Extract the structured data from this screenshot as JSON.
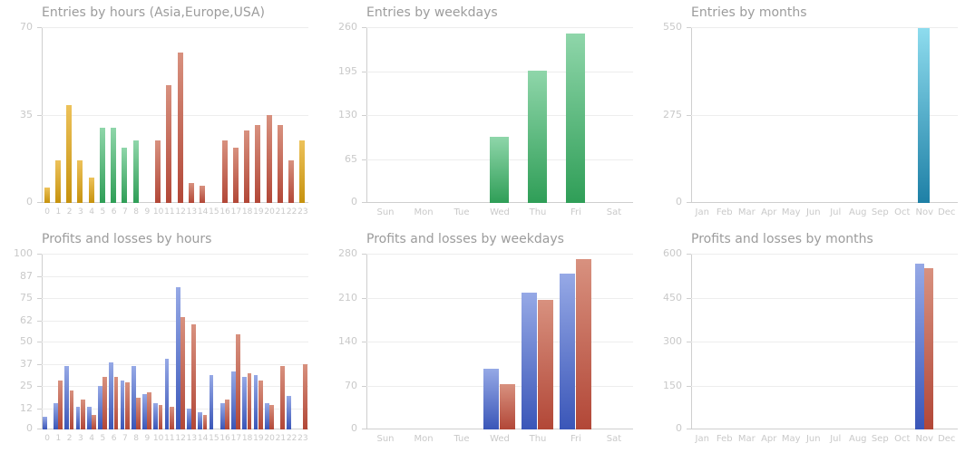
{
  "page": {
    "background": "#ffffff"
  },
  "axis_style": {
    "title_color": "#9c9c9c",
    "tick_label_color": "#c9c9c9",
    "axis_line_color": "#cfcfcf",
    "grid_color": "#ededed"
  },
  "palette": {
    "orange": {
      "top": "#edc25a",
      "bottom": "#c6920e"
    },
    "green": {
      "top": "#8fd6aa",
      "bottom": "#2f9e57"
    },
    "red": {
      "top": "#d8917f",
      "bottom": "#b24737"
    },
    "blue": {
      "top": "#96a9e6",
      "bottom": "#3a56b8"
    },
    "teal": {
      "top": "#8edcee",
      "bottom": "#1e80a6"
    }
  },
  "chart_data": [
    {
      "type": "bar",
      "title": "Entries by hours (Asia,Europe,USA)",
      "categories": [
        "0",
        "1",
        "2",
        "3",
        "4",
        "5",
        "6",
        "7",
        "8",
        "9",
        "10",
        "11",
        "12",
        "13",
        "14",
        "15",
        "16",
        "17",
        "18",
        "19",
        "20",
        "21",
        "22",
        "23"
      ],
      "values": [
        6,
        17,
        39,
        17,
        10,
        30,
        30,
        22,
        25,
        0,
        25,
        47,
        60,
        8,
        7,
        0,
        25,
        22,
        29,
        31,
        35,
        31,
        17,
        25
      ],
      "bar_colors": [
        "orange",
        "orange",
        "orange",
        "orange",
        "orange",
        "green",
        "green",
        "green",
        "green",
        "green",
        "red",
        "red",
        "red",
        "red",
        "red",
        "red",
        "red",
        "red",
        "red",
        "red",
        "red",
        "red",
        "red",
        "orange"
      ],
      "ylim": [
        0,
        70
      ],
      "yticks": [
        0,
        35,
        70
      ],
      "grid": true,
      "legend": "none"
    },
    {
      "type": "bar",
      "title": "Entries by weekdays",
      "categories": [
        "Sun",
        "Mon",
        "Tue",
        "Wed",
        "Thu",
        "Fri",
        "Sat"
      ],
      "values": [
        0,
        0,
        0,
        98,
        196,
        250,
        0
      ],
      "color": "green",
      "ylim": [
        0,
        260
      ],
      "yticks": [
        0,
        65,
        130,
        195,
        260
      ],
      "grid": true,
      "legend": "none"
    },
    {
      "type": "bar",
      "title": "Entries by months",
      "categories": [
        "Jan",
        "Feb",
        "Mar",
        "Apr",
        "May",
        "Jun",
        "Jul",
        "Aug",
        "Sep",
        "Oct",
        "Nov",
        "Dec"
      ],
      "values": [
        0,
        0,
        0,
        0,
        0,
        0,
        0,
        0,
        0,
        0,
        548,
        0
      ],
      "color": "teal",
      "ylim": [
        0,
        550
      ],
      "yticks": [
        0,
        275,
        550
      ],
      "grid": true,
      "legend": "none"
    },
    {
      "type": "bar",
      "title": "Profits and losses by hours",
      "categories": [
        "0",
        "1",
        "2",
        "3",
        "4",
        "5",
        "6",
        "7",
        "8",
        "9",
        "10",
        "11",
        "12",
        "13",
        "14",
        "15",
        "16",
        "17",
        "18",
        "19",
        "20",
        "21",
        "22",
        "23"
      ],
      "series": [
        {
          "color": "blue",
          "values": [
            7,
            15,
            36,
            13,
            13,
            25,
            38,
            28,
            36,
            20,
            15,
            40,
            81,
            12,
            10,
            31,
            15,
            33,
            30,
            31,
            15,
            0,
            19,
            0
          ]
        },
        {
          "color": "red",
          "values": [
            0,
            28,
            22,
            17,
            8,
            30,
            30,
            27,
            18,
            21,
            14,
            13,
            64,
            60,
            8,
            0,
            17,
            54,
            32,
            28,
            14,
            36,
            0,
            37
          ]
        }
      ],
      "ylim": [
        0,
        100
      ],
      "yticks": [
        0,
        12,
        25,
        37,
        50,
        62,
        75,
        87,
        100
      ],
      "grid": true,
      "legend": "none"
    },
    {
      "type": "bar",
      "title": "Profits and losses by weekdays",
      "categories": [
        "Sun",
        "Mon",
        "Tue",
        "Wed",
        "Thu",
        "Fri",
        "Sat"
      ],
      "series": [
        {
          "color": "blue",
          "values": [
            0,
            0,
            0,
            97,
            218,
            248,
            0
          ]
        },
        {
          "color": "red",
          "values": [
            0,
            0,
            0,
            72,
            207,
            272,
            0
          ]
        }
      ],
      "ylim": [
        0,
        280
      ],
      "yticks": [
        0,
        70,
        140,
        210,
        280
      ],
      "grid": true,
      "legend": "none"
    },
    {
      "type": "bar",
      "title": "Profits and losses by months",
      "categories": [
        "Jan",
        "Feb",
        "Mar",
        "Apr",
        "May",
        "Jun",
        "Jul",
        "Aug",
        "Sep",
        "Oct",
        "Nov",
        "Dec"
      ],
      "series": [
        {
          "color": "blue",
          "values": [
            0,
            0,
            0,
            0,
            0,
            0,
            0,
            0,
            0,
            0,
            565,
            0
          ]
        },
        {
          "color": "red",
          "values": [
            0,
            0,
            0,
            0,
            0,
            0,
            0,
            0,
            0,
            0,
            550,
            0
          ]
        }
      ],
      "ylim": [
        0,
        600
      ],
      "yticks": [
        0,
        150,
        300,
        450,
        600
      ],
      "grid": true,
      "legend": "none"
    }
  ]
}
